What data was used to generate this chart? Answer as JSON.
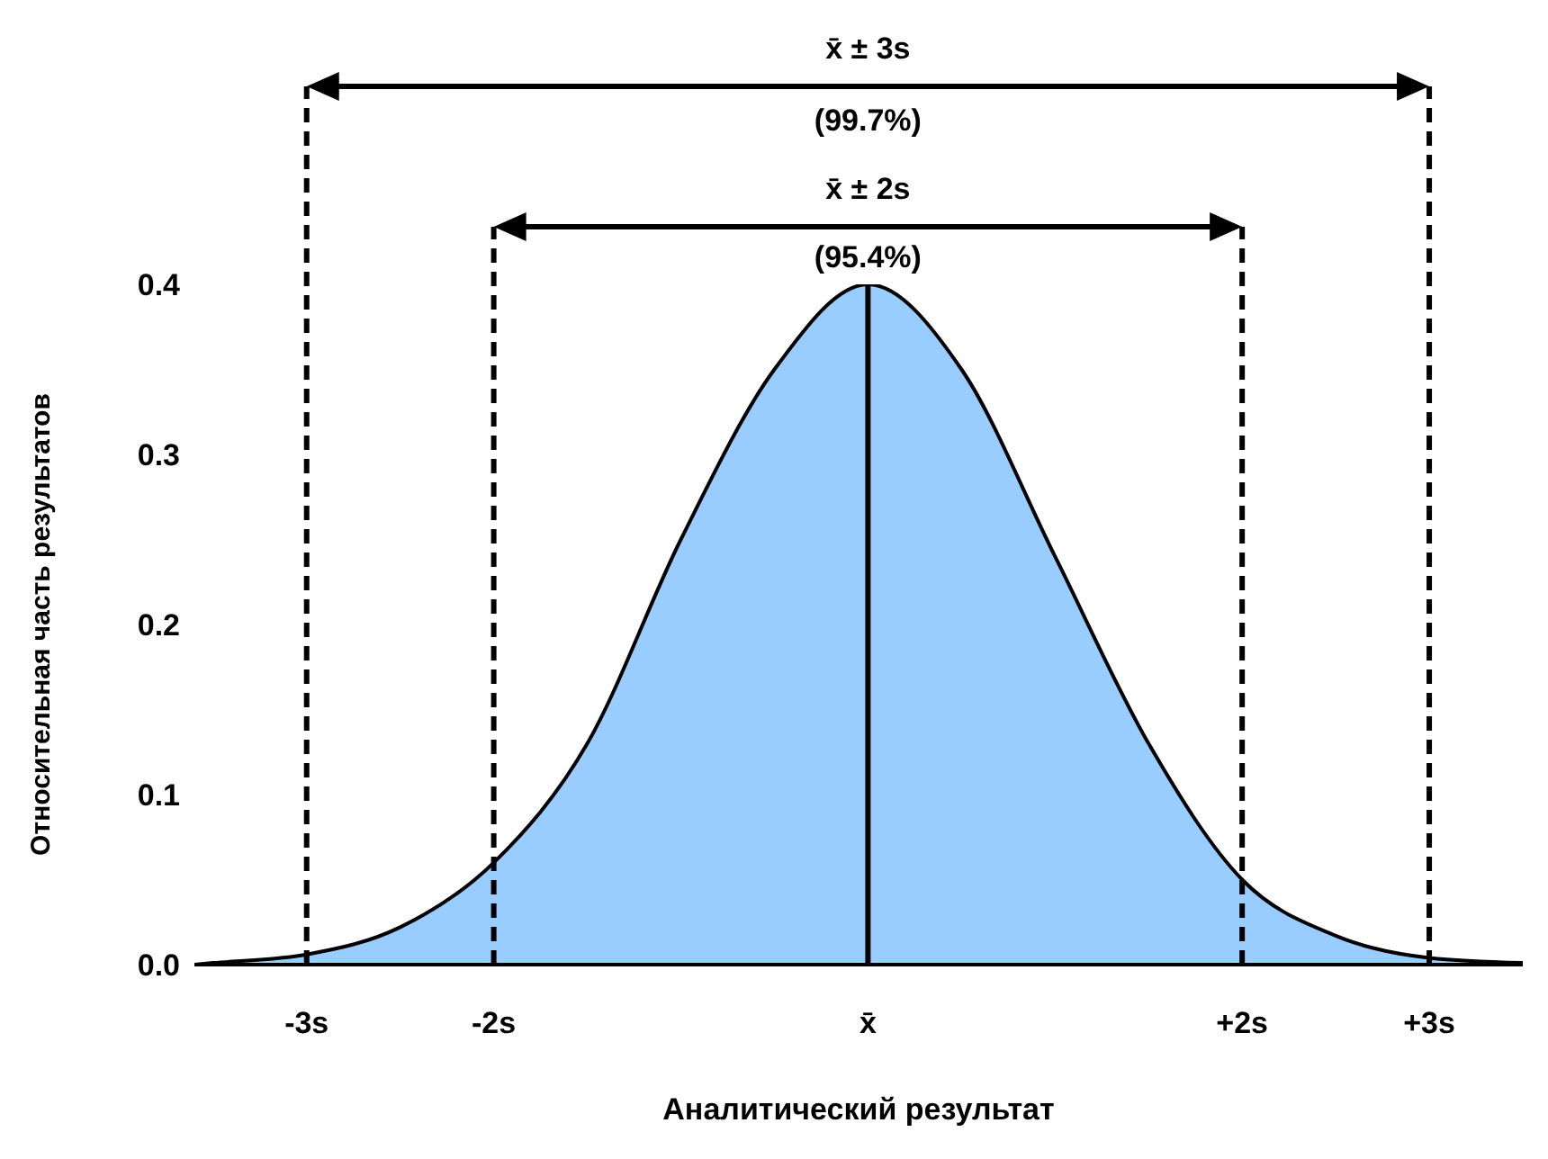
{
  "chart_data": {
    "type": "area",
    "xlabel": "Аналитический результат",
    "ylabel": "Относительная часть результатов",
    "x": [
      -3.6,
      -3.5,
      -3,
      -2.5,
      -2,
      -1.5,
      -1,
      -0.5,
      0,
      0.5,
      1,
      1.5,
      2,
      2.5,
      3,
      3.5
    ],
    "series": [
      {
        "color": "#99ccff",
        "values": [
          0,
          0.001,
          0.006,
          0.022,
          0.06,
          0.13,
          0.25,
          0.35,
          0.4,
          0.35,
          0.24,
          0.13,
          0.05,
          0.017,
          0.004,
          0.001
        ]
      }
    ],
    "xlim": [
      -3.6,
      3.5
    ],
    "xticks": [
      {
        "value": -3,
        "label": "-3s"
      },
      {
        "value": -2,
        "label": "-2s"
      },
      {
        "value": 0,
        "label": "x̄"
      },
      {
        "value": 2,
        "label": "+2s"
      },
      {
        "value": 3,
        "label": "+3s"
      }
    ],
    "ylim": [
      0,
      0.4
    ],
    "yticks": [
      {
        "value": 0,
        "label": "0.0"
      },
      {
        "value": 0.1,
        "label": "0.1"
      },
      {
        "value": 0.2,
        "label": "0.2"
      },
      {
        "value": 0.3,
        "label": "0.3"
      },
      {
        "value": 0.4,
        "label": "0.4"
      }
    ],
    "ref_lines": [
      {
        "axis": "x",
        "value": -3,
        "line_style": "dashed",
        "color": "#000000"
      },
      {
        "axis": "x",
        "value": -2,
        "line_style": "dashed",
        "color": "#000000"
      },
      {
        "axis": "x",
        "value": 0,
        "line_style": "solid",
        "color": "#000000"
      },
      {
        "axis": "x",
        "value": 2,
        "line_style": "dashed",
        "color": "#000000"
      },
      {
        "axis": "x",
        "value": 3,
        "line_style": "dashed",
        "color": "#000000"
      }
    ],
    "annotations": [
      "x̄ ± 3s",
      "(99.7%)",
      "x̄ ± 2s",
      "(95.4%)"
    ],
    "grid": false,
    "legend": false
  }
}
